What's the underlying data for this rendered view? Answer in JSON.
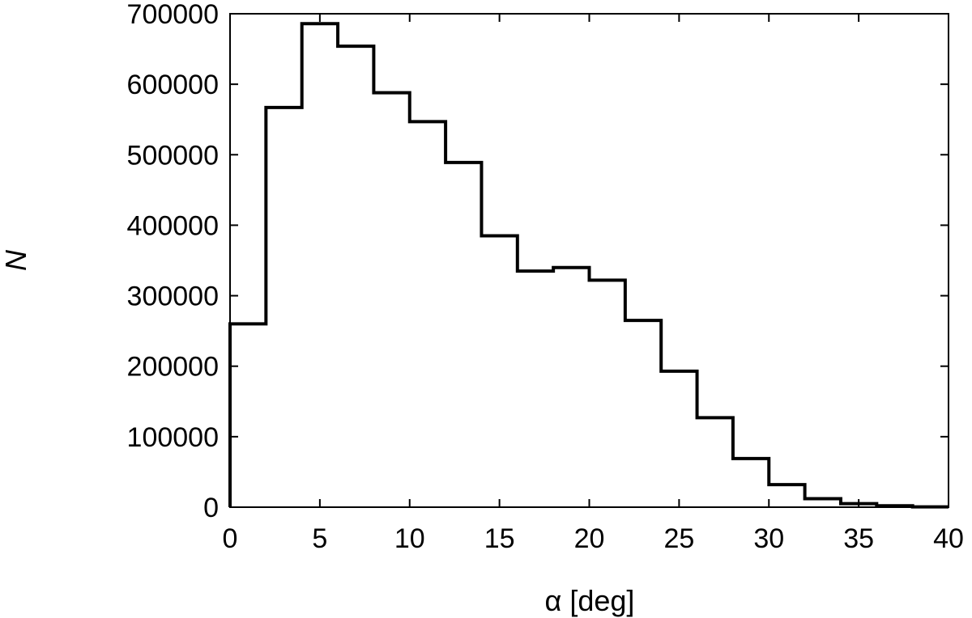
{
  "chart_data": {
    "type": "histogram",
    "bin_edges": [
      0,
      2,
      4,
      6,
      8,
      10,
      12,
      14,
      16,
      18,
      20,
      22,
      24,
      26,
      28,
      30,
      32,
      34,
      36,
      38,
      40
    ],
    "values": [
      260000,
      567000,
      686000,
      654000,
      588000,
      547000,
      489000,
      385000,
      335000,
      340000,
      322000,
      265000,
      193000,
      127000,
      69000,
      32000,
      12000,
      5000,
      2000,
      500
    ],
    "xlabel": "α [deg]",
    "ylabel": "N",
    "xlim": [
      0,
      40
    ],
    "ylim": [
      0,
      700000
    ],
    "xticks": [
      0,
      5,
      10,
      15,
      20,
      25,
      30,
      35,
      40
    ],
    "yticks": [
      0,
      100000,
      200000,
      300000,
      400000,
      500000,
      600000,
      700000
    ],
    "grid": false,
    "legend": "none"
  }
}
